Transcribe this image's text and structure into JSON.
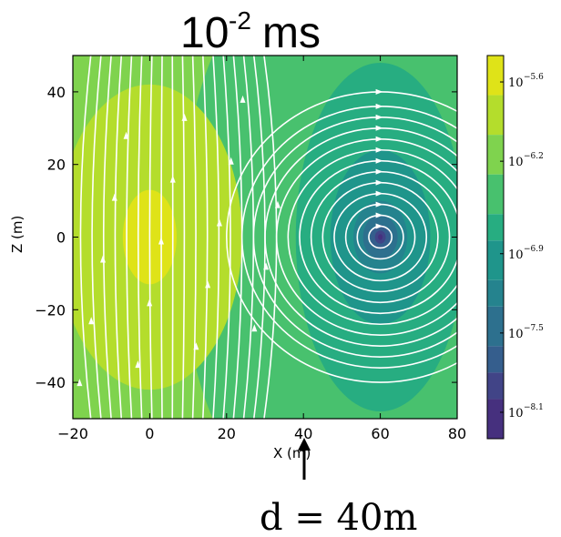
{
  "chart_data": {
    "type": "heatmap",
    "title": {
      "base": "10",
      "exponent": "-2",
      "unit": " ms"
    },
    "xlabel": "X (m)",
    "ylabel": "Z (m)",
    "xlim": [
      -20,
      80
    ],
    "ylim": [
      -50,
      50
    ],
    "x_ticks": [
      -20,
      0,
      20,
      40,
      60,
      80
    ],
    "x_tick_labels": [
      "−20",
      "0",
      "20",
      "40",
      "60",
      "80"
    ],
    "y_ticks": [
      40,
      20,
      0,
      -20,
      -40
    ],
    "y_tick_labels": [
      "40",
      "20",
      "0",
      "−20",
      "−40"
    ],
    "colorbar": {
      "scale": "log",
      "range_log10": [
        -8.3,
        -5.4
      ],
      "ticks": [
        {
          "base": "10",
          "exponent": "−5.6",
          "log10": -5.6
        },
        {
          "base": "10",
          "exponent": "−6.2",
          "log10": -6.2
        },
        {
          "base": "10",
          "exponent": "−6.9",
          "log10": -6.9
        },
        {
          "base": "10",
          "exponent": "−7.5",
          "log10": -7.5
        },
        {
          "base": "10",
          "exponent": "−8.1",
          "log10": -8.1
        }
      ],
      "levels": [
        {
          "log10_min": -5.7,
          "log10_max": -5.4,
          "color": "#dfe318"
        },
        {
          "log10_min": -6.0,
          "log10_max": -5.7,
          "color": "#b4dd2c"
        },
        {
          "log10_min": -6.3,
          "log10_max": -6.0,
          "color": "#7fd34e"
        },
        {
          "log10_min": -6.6,
          "log10_max": -6.3,
          "color": "#48c16e"
        },
        {
          "log10_min": -6.8,
          "log10_max": -6.6,
          "color": "#27ad81"
        },
        {
          "log10_min": -7.1,
          "log10_max": -6.8,
          "color": "#1f958b"
        },
        {
          "log10_min": -7.3,
          "log10_max": -7.1,
          "color": "#25838e"
        },
        {
          "log10_min": -7.6,
          "log10_max": -7.3,
          "color": "#2d708e"
        },
        {
          "log10_min": -7.8,
          "log10_max": -7.6,
          "color": "#355e8d"
        },
        {
          "log10_min": -8.0,
          "log10_max": -7.8,
          "color": "#414487"
        },
        {
          "log10_min": -8.3,
          "log10_max": -8.0,
          "color": "#46307e"
        }
      ]
    },
    "field": {
      "source_center": [
        0,
        0
      ],
      "minimum_center": [
        60,
        0
      ],
      "description_of_regions": [
        {
          "level_log10": -5.55,
          "shape": "ellipse",
          "center": [
            0,
            0
          ],
          "rx": 7,
          "ry": 13
        },
        {
          "level_log10": -5.85,
          "shape": "ellipse",
          "center": [
            0,
            0
          ],
          "rx": 24,
          "ry": 42
        },
        {
          "level_log10": -6.15,
          "shape": "ellipse",
          "center": [
            5,
            0
          ],
          "rx": 41,
          "ry": 68
        },
        {
          "level_log10": -6.45,
          "shape": "ellipse",
          "center": [
            36,
            0
          ],
          "rx": 28,
          "ry": 70
        },
        {
          "level_log10": -6.7,
          "shape": "ellipse",
          "center": [
            60,
            0
          ],
          "rx": 22,
          "ry": 48
        },
        {
          "level_log10": -6.95,
          "shape": "ellipse",
          "center": [
            60,
            0
          ],
          "rx": 13,
          "ry": 24
        },
        {
          "level_log10": -7.2,
          "shape": "ellipse",
          "center": [
            60,
            0
          ],
          "rx": 7,
          "ry": 10
        },
        {
          "level_log10": -7.45,
          "shape": "ellipse",
          "center": [
            60,
            0
          ],
          "rx": 4.5,
          "ry": 6
        },
        {
          "level_log10": -7.7,
          "shape": "ellipse",
          "center": [
            60,
            0
          ],
          "rx": 2.6,
          "ry": 3.4
        },
        {
          "level_log10": -7.9,
          "shape": "ellipse",
          "center": [
            60,
            0
          ],
          "rx": 1.4,
          "ry": 1.8
        },
        {
          "level_log10": -8.15,
          "shape": "ellipse",
          "center": [
            60,
            0
          ],
          "rx": 0.6,
          "ry": 0.8
        }
      ]
    },
    "streamlines": {
      "color": "#ffffff",
      "vertical_lines_x": [
        -18,
        -15,
        -12,
        -9,
        -6,
        -3,
        0,
        3,
        6,
        9,
        12,
        15,
        18,
        21,
        24,
        27,
        30,
        33
      ],
      "loop_radii_at": [
        60,
        0
      ],
      "loop_radii": [
        3,
        6,
        9,
        12,
        15,
        18,
        21,
        24,
        27,
        30,
        33,
        36,
        40
      ]
    },
    "annotation": {
      "text": "d = 40m",
      "arrow_at_x": 40
    }
  }
}
